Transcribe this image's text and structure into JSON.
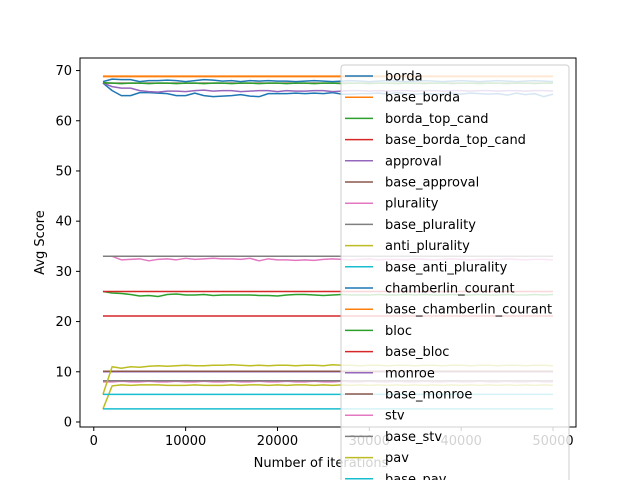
{
  "chart_data": {
    "type": "line",
    "xlabel": "Number of iterations",
    "ylabel": "Avg Score",
    "xlim": [
      -1500,
      52500
    ],
    "ylim": [
      -1.0,
      72.5
    ],
    "xticks": [
      0,
      10000,
      20000,
      30000,
      40000,
      50000
    ],
    "xtick_labels": [
      "0",
      "10000",
      "20000",
      "30000",
      "40000",
      "50000"
    ],
    "yticks": [
      0,
      10,
      20,
      30,
      40,
      50,
      60,
      70
    ],
    "ytick_labels": [
      "0",
      "10",
      "20",
      "30",
      "40",
      "50",
      "60",
      "70"
    ],
    "grid": false,
    "legend_position": "right",
    "x": [
      1000,
      2000,
      3000,
      4000,
      5000,
      6000,
      7000,
      8000,
      9000,
      10000,
      11000,
      12000,
      13000,
      14000,
      15000,
      16000,
      17000,
      18000,
      19000,
      20000,
      21000,
      22000,
      23000,
      24000,
      25000,
      26000,
      27000,
      28000,
      29000,
      30000,
      31000,
      32000,
      33000,
      34000,
      35000,
      36000,
      37000,
      38000,
      39000,
      40000,
      41000,
      42000,
      43000,
      44000,
      45000,
      46000,
      47000,
      48000,
      49000,
      50000
    ],
    "series": [
      {
        "name": "borda",
        "color": "#1f77b4",
        "values": [
          67.5,
          66.0,
          65.0,
          65.0,
          65.6,
          65.6,
          65.5,
          65.4,
          65.0,
          65.0,
          65.5,
          65.0,
          64.8,
          64.9,
          65.0,
          65.2,
          64.9,
          64.8,
          65.4,
          65.4,
          65.4,
          65.5,
          65.4,
          65.5,
          65.4,
          65.6,
          65.3,
          65.3,
          65.4,
          65.4,
          65.5,
          65.3,
          65.6,
          65.4,
          65.3,
          65.4,
          65.3,
          65.4,
          65.5,
          65.3,
          65.5,
          65.4,
          65.3,
          65.4,
          65.1,
          65.5,
          65.2,
          65.4,
          64.8,
          65.3
        ]
      },
      {
        "name": "base_borda",
        "color": "#ff7f0e",
        "values": [
          68.9,
          68.9,
          68.9,
          68.9,
          68.9,
          68.9,
          68.9,
          68.9,
          68.9,
          68.9,
          68.9,
          68.9,
          68.9,
          68.9,
          68.9,
          68.9,
          68.9,
          68.9,
          68.9,
          68.9,
          68.9,
          68.9,
          68.9,
          68.9,
          68.9,
          68.9,
          68.9,
          68.9,
          68.9,
          68.9,
          68.9,
          68.9,
          68.9,
          68.9,
          68.9,
          68.9,
          68.9,
          68.9,
          68.9,
          68.9,
          68.9,
          68.9,
          68.9,
          68.9,
          68.9,
          68.9,
          68.9,
          68.9,
          68.9,
          68.9
        ]
      },
      {
        "name": "borda_top_cand",
        "color": "#2ca02c",
        "values": [
          26.0,
          25.7,
          25.6,
          25.4,
          25.1,
          25.2,
          25.0,
          25.4,
          25.5,
          25.3,
          25.3,
          25.4,
          25.2,
          25.3,
          25.3,
          25.3,
          25.3,
          25.2,
          25.2,
          25.1,
          25.3,
          25.4,
          25.4,
          25.3,
          25.2,
          25.3,
          25.4,
          25.3,
          25.3,
          25.3,
          25.4,
          25.3,
          25.3,
          25.4,
          25.3,
          25.4,
          25.3,
          25.3,
          25.4,
          25.3,
          25.3,
          25.4,
          25.3,
          25.3,
          25.4,
          25.3,
          25.3,
          25.4,
          25.3,
          25.4
        ]
      },
      {
        "name": "base_borda_top_cand",
        "color": "#d62728",
        "values": [
          26.0,
          26.0,
          26.0,
          26.0,
          26.0,
          26.0,
          26.0,
          26.0,
          26.0,
          26.0,
          26.0,
          26.0,
          26.0,
          26.0,
          26.0,
          26.0,
          26.0,
          26.0,
          26.0,
          26.0,
          26.0,
          26.0,
          26.0,
          26.0,
          26.0,
          26.0,
          26.0,
          26.0,
          26.0,
          26.0,
          26.0,
          26.0,
          26.0,
          26.0,
          26.0,
          26.0,
          26.0,
          26.0,
          26.0,
          26.0,
          26.0,
          26.0,
          26.0,
          26.0,
          26.0,
          26.0,
          26.0,
          26.0,
          26.0,
          26.0
        ]
      },
      {
        "name": "approval",
        "color": "#9467bd",
        "values": [
          67.5,
          66.8,
          66.5,
          66.5,
          66.0,
          65.8,
          65.7,
          65.9,
          65.9,
          65.8,
          66.0,
          66.1,
          65.9,
          66.0,
          66.0,
          65.8,
          65.9,
          66.0,
          66.0,
          65.8,
          66.0,
          65.9,
          65.9,
          66.0,
          66.0,
          65.8,
          65.9,
          66.0,
          66.0,
          65.9,
          66.0,
          65.9,
          66.0,
          66.0,
          65.9,
          66.0,
          66.0,
          65.9,
          66.0,
          66.0,
          65.9,
          66.0,
          66.0,
          65.9,
          66.0,
          66.0,
          65.9,
          66.0,
          66.0,
          65.9
        ]
      },
      {
        "name": "base_approval",
        "color": "#8c564b",
        "values": [
          67.5,
          67.5,
          67.5,
          67.5,
          67.5,
          67.5,
          67.5,
          67.5,
          67.5,
          67.5,
          67.5,
          67.5,
          67.5,
          67.5,
          67.5,
          67.5,
          67.5,
          67.5,
          67.5,
          67.5,
          67.5,
          67.5,
          67.5,
          67.5,
          67.5,
          67.5,
          67.5,
          67.5,
          67.5,
          67.5,
          67.5,
          67.5,
          67.5,
          67.5,
          67.5,
          67.5,
          67.5,
          67.5,
          67.5,
          67.5,
          67.5,
          67.5,
          67.5,
          67.5,
          67.5,
          67.5,
          67.5,
          67.5,
          67.5,
          67.5
        ]
      },
      {
        "name": "plurality",
        "color": "#e377c2",
        "values": [
          33.0,
          33.0,
          32.3,
          32.4,
          32.5,
          32.1,
          32.4,
          32.5,
          32.3,
          32.6,
          32.4,
          32.5,
          32.6,
          32.5,
          32.5,
          32.4,
          32.6,
          32.1,
          32.5,
          32.3,
          32.3,
          32.2,
          32.3,
          32.2,
          32.4,
          32.5,
          32.4,
          32.3,
          32.4,
          32.5,
          32.3,
          32.4,
          32.4,
          32.3,
          32.5,
          32.4,
          32.3,
          32.4,
          32.5,
          32.4,
          32.3,
          32.4,
          32.4,
          32.3,
          32.5,
          32.4,
          32.3,
          32.4,
          32.4,
          32.3
        ]
      },
      {
        "name": "base_plurality",
        "color": "#7f7f7f",
        "values": [
          33.0,
          33.0,
          33.0,
          33.0,
          33.0,
          33.0,
          33.0,
          33.0,
          33.0,
          33.0,
          33.0,
          33.0,
          33.0,
          33.0,
          33.0,
          33.0,
          33.0,
          33.0,
          33.0,
          33.0,
          33.0,
          33.0,
          33.0,
          33.0,
          33.0,
          33.0,
          33.0,
          33.0,
          33.0,
          33.0,
          33.0,
          33.0,
          33.0,
          33.0,
          33.0,
          33.0,
          33.0,
          33.0,
          33.0,
          33.0,
          33.0,
          33.0,
          33.0,
          33.0,
          33.0,
          33.0,
          33.0,
          33.0,
          33.0,
          33.0
        ]
      },
      {
        "name": "anti_plurality",
        "color": "#bcbd22",
        "values": [
          2.6,
          7.2,
          7.4,
          7.3,
          7.4,
          7.4,
          7.4,
          7.3,
          7.3,
          7.3,
          7.4,
          7.3,
          7.3,
          7.3,
          7.4,
          7.3,
          7.4,
          7.4,
          7.3,
          7.4,
          7.3,
          7.4,
          7.4,
          7.3,
          7.4,
          7.3,
          7.4,
          7.3,
          7.4,
          7.3,
          7.4,
          7.3,
          7.4,
          7.3,
          7.4,
          7.3,
          7.4,
          7.3,
          7.4,
          7.3,
          7.4,
          7.3,
          7.4,
          7.3,
          7.4,
          7.3,
          7.4,
          7.3,
          7.4,
          7.3
        ]
      },
      {
        "name": "base_anti_plurality",
        "color": "#17becf",
        "values": [
          2.6,
          2.6,
          2.6,
          2.6,
          2.6,
          2.6,
          2.6,
          2.6,
          2.6,
          2.6,
          2.6,
          2.6,
          2.6,
          2.6,
          2.6,
          2.6,
          2.6,
          2.6,
          2.6,
          2.6,
          2.6,
          2.6,
          2.6,
          2.6,
          2.6,
          2.6,
          2.6,
          2.6,
          2.6,
          2.6,
          2.6,
          2.6,
          2.6,
          2.6,
          2.6,
          2.6,
          2.6,
          2.6,
          2.6,
          2.6,
          2.6,
          2.6,
          2.6,
          2.6,
          2.6,
          2.6,
          2.6,
          2.6,
          2.6,
          2.6
        ]
      },
      {
        "name": "chamberlin_courant",
        "color": "#1f77b4",
        "values": [
          67.8,
          68.3,
          68.2,
          68.2,
          67.8,
          68.0,
          68.0,
          68.1,
          68.0,
          67.8,
          68.0,
          68.2,
          68.1,
          67.9,
          68.0,
          67.8,
          68.0,
          67.9,
          68.0,
          67.9,
          67.9,
          67.8,
          67.9,
          68.0,
          67.9,
          67.8,
          67.9,
          68.0,
          67.9,
          67.8,
          67.9,
          68.0,
          67.9,
          67.8,
          67.9,
          68.0,
          67.9,
          67.8,
          67.9,
          68.0,
          67.9,
          67.8,
          67.9,
          68.0,
          67.9,
          67.8,
          67.9,
          68.0,
          67.9,
          67.8
        ]
      },
      {
        "name": "base_chamberlin_courant",
        "color": "#ff7f0e",
        "values": [
          68.8,
          68.8,
          68.8,
          68.8,
          68.8,
          68.8,
          68.8,
          68.8,
          68.8,
          68.8,
          68.8,
          68.8,
          68.8,
          68.8,
          68.8,
          68.8,
          68.8,
          68.8,
          68.8,
          68.8,
          68.8,
          68.8,
          68.8,
          68.8,
          68.8,
          68.8,
          68.8,
          68.8,
          68.8,
          68.8,
          68.8,
          68.8,
          68.8,
          68.8,
          68.8,
          68.8,
          68.8,
          68.8,
          68.8,
          68.8,
          68.8,
          68.8,
          68.8,
          68.8,
          68.8,
          68.8,
          68.8,
          68.8,
          68.8,
          68.8
        ]
      },
      {
        "name": "bloc",
        "color": "#2ca02c",
        "values": [
          67.6,
          67.5,
          67.4,
          67.5,
          67.5,
          67.4,
          67.5,
          67.5,
          67.4,
          67.5,
          67.5,
          67.4,
          67.5,
          67.5,
          67.4,
          67.5,
          67.5,
          67.4,
          67.5,
          67.5,
          67.4,
          67.5,
          67.5,
          67.4,
          67.5,
          67.5,
          67.4,
          67.5,
          67.5,
          67.4,
          67.5,
          67.5,
          67.4,
          67.5,
          67.5,
          67.4,
          67.5,
          67.5,
          67.4,
          67.5,
          67.5,
          67.4,
          67.5,
          67.5,
          67.4,
          67.5,
          67.5,
          67.4,
          67.5,
          67.5
        ]
      },
      {
        "name": "base_bloc",
        "color": "#d62728",
        "values": [
          21.1,
          21.1,
          21.1,
          21.1,
          21.1,
          21.1,
          21.1,
          21.1,
          21.1,
          21.1,
          21.1,
          21.1,
          21.1,
          21.1,
          21.1,
          21.1,
          21.1,
          21.1,
          21.1,
          21.1,
          21.1,
          21.1,
          21.1,
          21.1,
          21.1,
          21.1,
          21.1,
          21.1,
          21.1,
          21.1,
          21.1,
          21.1,
          21.1,
          21.1,
          21.1,
          21.1,
          21.1,
          21.1,
          21.1,
          21.1,
          21.1,
          21.1,
          21.1,
          21.1,
          21.1,
          21.1,
          21.1,
          21.1,
          21.1,
          21.1
        ]
      },
      {
        "name": "monroe",
        "color": "#9467bd",
        "values": [
          10.0,
          10.0,
          10.0,
          10.0,
          10.0,
          10.0,
          10.0,
          10.0,
          10.0,
          10.0,
          10.0,
          10.0,
          10.0,
          10.0,
          10.0,
          10.0,
          10.0,
          10.0,
          10.0,
          10.0,
          10.0,
          10.0,
          10.0,
          10.0,
          10.0,
          10.0,
          10.0,
          10.0,
          10.0,
          10.0,
          10.0,
          10.0,
          10.0,
          10.0,
          10.0,
          10.0,
          10.0,
          10.0,
          10.0,
          10.0,
          10.0,
          10.0,
          10.0,
          10.0,
          10.0,
          10.0,
          10.0,
          10.0,
          10.0,
          10.0
        ]
      },
      {
        "name": "base_monroe",
        "color": "#8c564b",
        "values": [
          10.1,
          10.1,
          10.1,
          10.1,
          10.1,
          10.1,
          10.1,
          10.1,
          10.1,
          10.1,
          10.1,
          10.1,
          10.1,
          10.1,
          10.1,
          10.1,
          10.1,
          10.1,
          10.1,
          10.1,
          10.1,
          10.1,
          10.1,
          10.1,
          10.1,
          10.1,
          10.1,
          10.1,
          10.1,
          10.1,
          10.1,
          10.1,
          10.1,
          10.1,
          10.1,
          10.1,
          10.1,
          10.1,
          10.1,
          10.1,
          10.1,
          10.1,
          10.1,
          10.1,
          10.1,
          10.1,
          10.1,
          10.1,
          10.1,
          10.1
        ]
      },
      {
        "name": "stv",
        "color": "#e377c2",
        "values": [
          8.0,
          8.0,
          8.1,
          8.0,
          8.0,
          8.1,
          8.0,
          8.0,
          8.1,
          8.0,
          8.0,
          8.1,
          8.0,
          8.0,
          8.1,
          8.0,
          8.0,
          8.1,
          8.0,
          8.0,
          8.1,
          8.0,
          8.0,
          8.1,
          8.0,
          8.0,
          8.1,
          8.0,
          8.0,
          8.1,
          8.0,
          8.0,
          8.1,
          8.0,
          8.0,
          8.1,
          8.0,
          8.0,
          8.1,
          8.0,
          8.0,
          8.1,
          8.0,
          8.0,
          8.1,
          8.0,
          8.0,
          8.1,
          8.0,
          8.0
        ]
      },
      {
        "name": "base_stv",
        "color": "#7f7f7f",
        "values": [
          8.2,
          8.2,
          8.2,
          8.2,
          8.2,
          8.2,
          8.2,
          8.2,
          8.2,
          8.2,
          8.2,
          8.2,
          8.2,
          8.2,
          8.2,
          8.2,
          8.2,
          8.2,
          8.2,
          8.2,
          8.2,
          8.2,
          8.2,
          8.2,
          8.2,
          8.2,
          8.2,
          8.2,
          8.2,
          8.2,
          8.2,
          8.2,
          8.2,
          8.2,
          8.2,
          8.2,
          8.2,
          8.2,
          8.2,
          8.2,
          8.2,
          8.2,
          8.2,
          8.2,
          8.2,
          8.2,
          8.2,
          8.2,
          8.2,
          8.2
        ]
      },
      {
        "name": "pav",
        "color": "#bcbd22",
        "values": [
          5.5,
          11.0,
          10.7,
          11.0,
          10.9,
          11.1,
          11.2,
          11.1,
          11.2,
          11.3,
          11.2,
          11.2,
          11.3,
          11.3,
          11.4,
          11.3,
          11.2,
          11.3,
          11.2,
          11.3,
          11.3,
          11.2,
          11.3,
          11.3,
          11.2,
          11.4,
          11.3,
          11.3,
          11.2,
          11.3,
          11.3,
          11.2,
          11.3,
          11.3,
          11.2,
          11.3,
          11.3,
          11.2,
          11.3,
          11.3,
          11.2,
          11.3,
          11.3,
          11.2,
          11.3,
          11.3,
          11.2,
          11.3,
          11.3,
          11.2
        ]
      },
      {
        "name": "base_pav",
        "color": "#17becf",
        "values": [
          5.5,
          5.5,
          5.5,
          5.5,
          5.5,
          5.5,
          5.5,
          5.5,
          5.5,
          5.5,
          5.5,
          5.5,
          5.5,
          5.5,
          5.5,
          5.5,
          5.5,
          5.5,
          5.5,
          5.5,
          5.5,
          5.5,
          5.5,
          5.5,
          5.5,
          5.5,
          5.5,
          5.5,
          5.5,
          5.5,
          5.5,
          5.5,
          5.5,
          5.5,
          5.5,
          5.5,
          5.5,
          5.5,
          5.5,
          5.5,
          5.5,
          5.5,
          5.5,
          5.5,
          5.5,
          5.5,
          5.5,
          5.5,
          5.5,
          5.5
        ]
      }
    ]
  }
}
